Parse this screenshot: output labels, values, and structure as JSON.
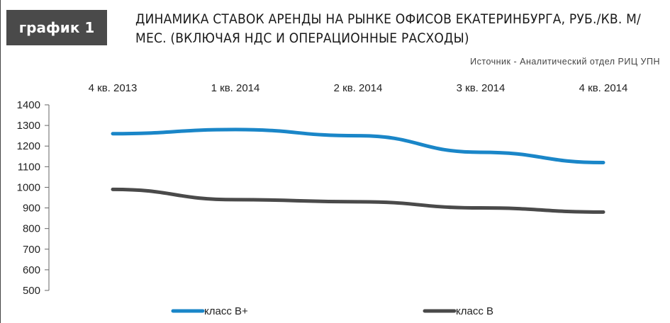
{
  "badge": "график 1",
  "title": "Динамика ставок аренды на рынке офисов Екатеринбурга, руб./кв. м/мес. (включая НДС и операционные расходы)",
  "source": "Источник - Аналитический отдел РИЦ УПН",
  "colors": {
    "class_b_plus": "#1a86c8",
    "class_b": "#4a4a4a"
  },
  "chart_data": {
    "type": "line",
    "title": "Динамика ставок аренды на рынке офисов Екатеринбурга, руб./кв. м/мес. (включая НДС и операционные расходы)",
    "categories": [
      "4 кв. 2013",
      "1 кв. 2014",
      "2 кв. 2014",
      "3 кв. 2014",
      "4 кв. 2014"
    ],
    "x_axis_position": "top",
    "yticks": [
      500,
      600,
      700,
      800,
      900,
      1000,
      1100,
      1200,
      1300,
      1400
    ],
    "ylim": [
      500,
      1400
    ],
    "grid": false,
    "legend": "bottom",
    "series": [
      {
        "name": "класс В+",
        "values": [
          1260,
          1280,
          1250,
          1170,
          1120
        ]
      },
      {
        "name": "класс В",
        "values": [
          990,
          940,
          930,
          900,
          880
        ]
      }
    ]
  }
}
